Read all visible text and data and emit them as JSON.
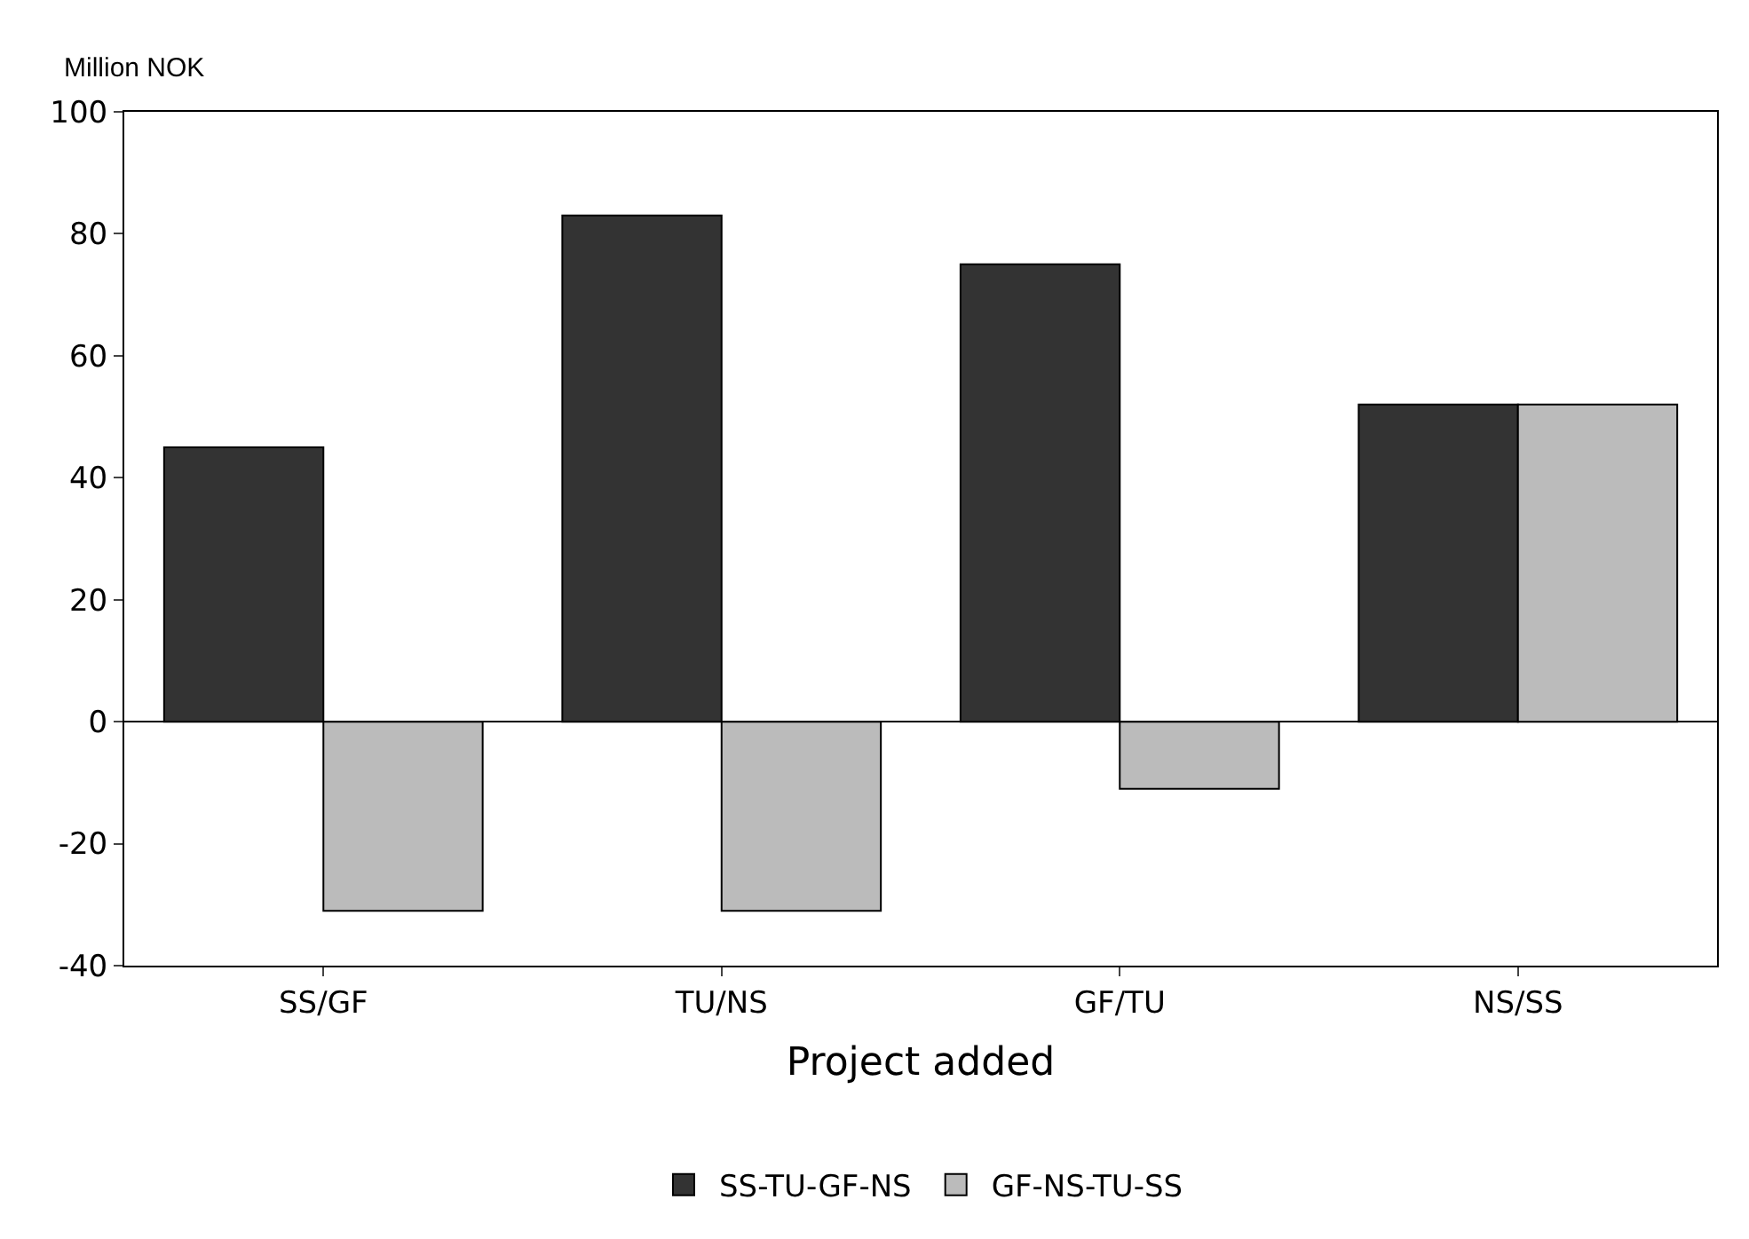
{
  "chart_data": {
    "type": "bar",
    "xlabel": "Project added",
    "ylabel": "Million NOK",
    "categories": [
      "SS/GF",
      "TU/NS",
      "GF/TU",
      "NS/SS"
    ],
    "series": [
      {
        "name": "SS-TU-GF-NS",
        "color": "#333333",
        "values": [
          45,
          83,
          75,
          52
        ]
      },
      {
        "name": "GF-NS-TU-SS",
        "color": "#bbbbbb",
        "values": [
          -31,
          -31,
          -11,
          52
        ]
      }
    ],
    "ylim": [
      -40,
      100
    ],
    "yticks": [
      -40,
      -20,
      0,
      20,
      40,
      60,
      80,
      100
    ],
    "legend": "bottom"
  }
}
